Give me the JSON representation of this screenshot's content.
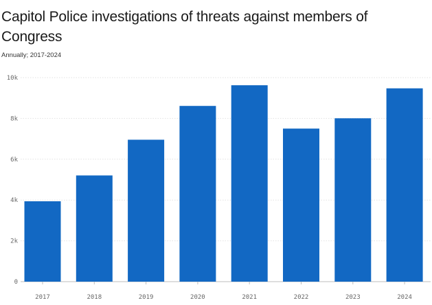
{
  "chart_data": {
    "type": "bar",
    "title": "Capitol Police investigations of threats against members of Congress",
    "subtitle": "Annually; 2017-2024",
    "xlabel": "",
    "ylabel": "",
    "categories": [
      "2017",
      "2018",
      "2019",
      "2020",
      "2021",
      "2022",
      "2023",
      "2024"
    ],
    "values": [
      3939,
      5206,
      6955,
      8613,
      9625,
      7501,
      8008,
      9474
    ],
    "ylim": [
      0,
      10000
    ],
    "yticks": [
      0,
      2000,
      4000,
      6000,
      8000,
      10000
    ],
    "ytick_labels": [
      "0",
      "2k",
      "4k",
      "6k",
      "8k",
      "10k"
    ],
    "grid": true,
    "bar_color": "#1268c3"
  }
}
